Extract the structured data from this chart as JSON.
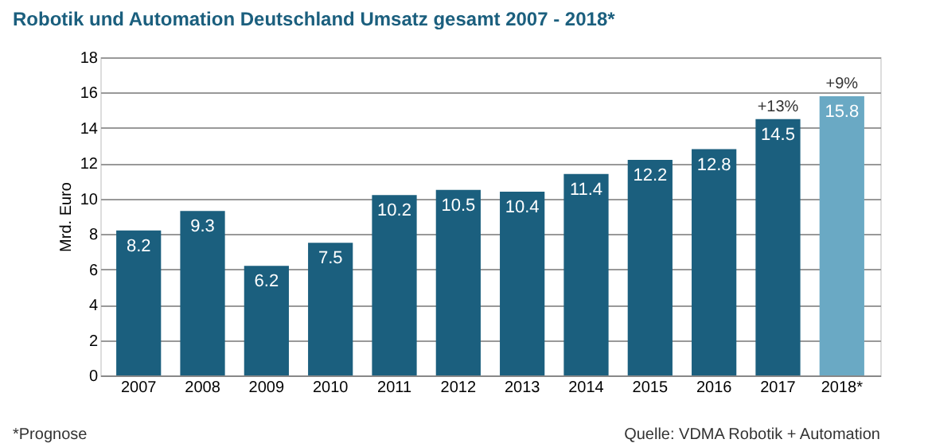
{
  "chart_data": {
    "type": "bar",
    "title": "Robotik und Automation Deutschland Umsatz gesamt 2007 - 2018*",
    "ylabel": "Mrd. Euro",
    "categories": [
      "2007",
      "2008",
      "2009",
      "2010",
      "2011",
      "2012",
      "2013",
      "2014",
      "2015",
      "2016",
      "2017",
      "2018*"
    ],
    "values": [
      8.2,
      9.3,
      6.2,
      7.5,
      10.2,
      10.5,
      10.4,
      11.4,
      12.2,
      12.8,
      14.5,
      15.8
    ],
    "colors": [
      "#1b5f7e",
      "#1b5f7e",
      "#1b5f7e",
      "#1b5f7e",
      "#1b5f7e",
      "#1b5f7e",
      "#1b5f7e",
      "#1b5f7e",
      "#1b5f7e",
      "#1b5f7e",
      "#1b5f7e",
      "#6aa9c4"
    ],
    "ylim": [
      0,
      18
    ],
    "yticks": [
      0,
      2,
      4,
      6,
      8,
      10,
      12,
      14,
      16,
      18
    ],
    "grid": "y",
    "data_labels": true,
    "annotations": [
      {
        "text": "+13%",
        "x": "2017",
        "y": 14.5
      },
      {
        "text": "+9%",
        "x": "2018*",
        "y": 15.8
      },
      "*Prognose",
      "Quelle: VDMA Robotik + Automation"
    ]
  }
}
